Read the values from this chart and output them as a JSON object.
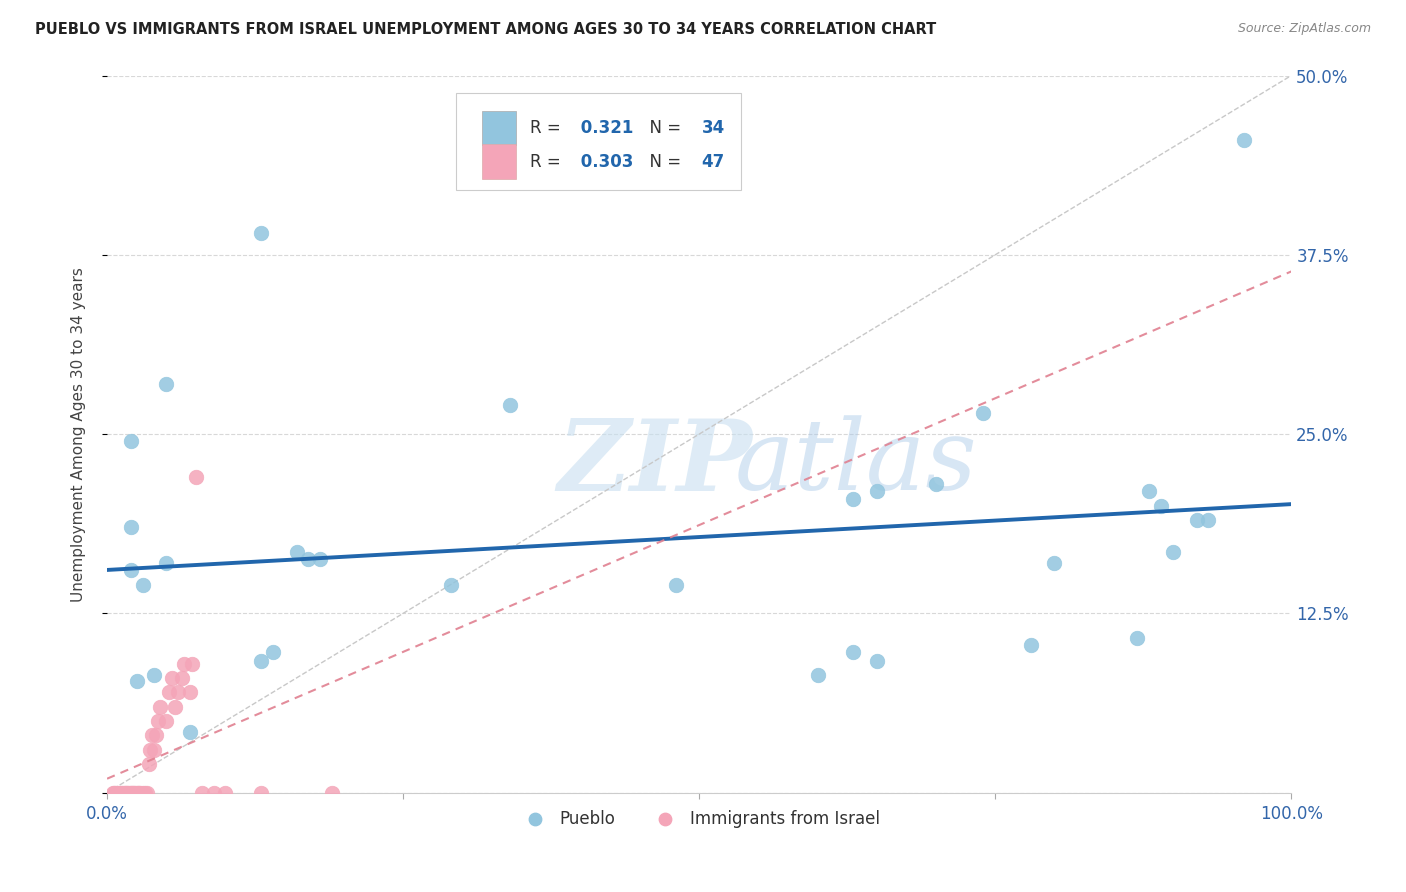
{
  "title": "PUEBLO VS IMMIGRANTS FROM ISRAEL UNEMPLOYMENT AMONG AGES 30 TO 34 YEARS CORRELATION CHART",
  "source": "Source: ZipAtlas.com",
  "ylabel": "Unemployment Among Ages 30 to 34 years",
  "xlim": [
    0,
    1.0
  ],
  "ylim": [
    0,
    0.5
  ],
  "R_pueblo": 0.321,
  "N_pueblo": 34,
  "R_israel": 0.303,
  "N_israel": 47,
  "blue_color": "#92c5de",
  "pink_color": "#f4a5b8",
  "blue_line_color": "#2166ac",
  "pink_line_color": "#e08090",
  "watermark_zip": "ZIP",
  "watermark_atlas": "atlas",
  "pueblo_x": [
    0.02,
    0.05,
    0.02,
    0.13,
    0.16,
    0.17,
    0.18,
    0.34,
    0.48,
    0.63,
    0.65,
    0.7,
    0.74,
    0.8,
    0.88,
    0.9,
    0.93,
    0.96,
    0.03,
    0.05,
    0.04,
    0.13,
    0.14,
    0.02,
    0.025,
    0.63,
    0.65,
    0.87,
    0.6,
    0.78,
    0.89,
    0.92,
    0.29,
    0.07
  ],
  "pueblo_y": [
    0.245,
    0.285,
    0.155,
    0.39,
    0.168,
    0.163,
    0.163,
    0.27,
    0.145,
    0.205,
    0.21,
    0.215,
    0.265,
    0.16,
    0.21,
    0.168,
    0.19,
    0.455,
    0.145,
    0.16,
    0.082,
    0.092,
    0.098,
    0.185,
    0.078,
    0.098,
    0.092,
    0.108,
    0.082,
    0.103,
    0.2,
    0.19,
    0.145,
    0.042
  ],
  "israel_x": [
    0.005,
    0.006,
    0.007,
    0.008,
    0.01,
    0.012,
    0.013,
    0.014,
    0.015,
    0.016,
    0.017,
    0.018,
    0.019,
    0.02,
    0.021,
    0.022,
    0.023,
    0.024,
    0.025,
    0.026,
    0.027,
    0.028,
    0.03,
    0.032,
    0.034,
    0.035,
    0.036,
    0.038,
    0.04,
    0.041,
    0.043,
    0.045,
    0.05,
    0.052,
    0.055,
    0.057,
    0.06,
    0.063,
    0.065,
    0.07,
    0.072,
    0.075,
    0.08,
    0.09,
    0.1,
    0.13,
    0.19
  ],
  "israel_y": [
    0.0,
    0.0,
    0.0,
    0.0,
    0.0,
    0.0,
    0.0,
    0.0,
    0.0,
    0.0,
    0.0,
    0.0,
    0.0,
    0.0,
    0.0,
    0.0,
    0.0,
    0.0,
    0.0,
    0.0,
    0.0,
    0.0,
    0.0,
    0.0,
    0.0,
    0.02,
    0.03,
    0.04,
    0.03,
    0.04,
    0.05,
    0.06,
    0.05,
    0.07,
    0.08,
    0.06,
    0.07,
    0.08,
    0.09,
    0.07,
    0.09,
    0.22,
    0.0,
    0.0,
    0.0,
    0.0,
    0.0
  ]
}
